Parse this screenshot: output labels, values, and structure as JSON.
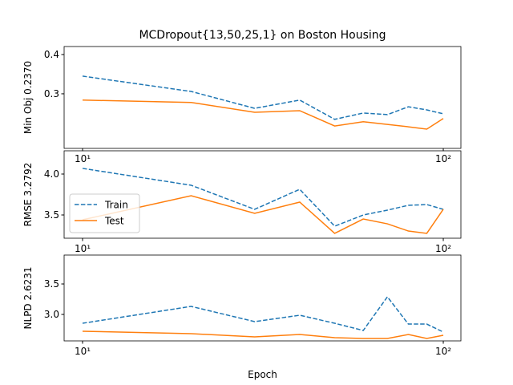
{
  "chart_data": [
    {
      "type": "line",
      "title": "MCDropout{13,50,25,1} on Boston Housing",
      "ylabel": "Min Obj 0.2370",
      "x": [
        10,
        20,
        30,
        40,
        50,
        60,
        70,
        80,
        90,
        100
      ],
      "xscale": "log",
      "xlim": [
        8.89,
        111.9
      ],
      "xticks": [
        {
          "value": 10,
          "label": "10¹"
        },
        {
          "value": 100,
          "label": "10²"
        }
      ],
      "ylim": [
        0.161,
        0.4204
      ],
      "yticks": [
        0.3,
        0.4
      ],
      "series": [
        {
          "color": "#1f77b4",
          "linestyle": "dashed",
          "values": [
            0.345,
            0.306,
            0.263,
            0.284,
            0.235,
            0.251,
            0.247,
            0.267,
            0.259,
            0.249
          ]
        },
        {
          "color": "#ff7f0e",
          "linestyle": "solid",
          "values": [
            0.284,
            0.278,
            0.253,
            0.257,
            0.218,
            0.229,
            0.222,
            0.216,
            0.21,
            0.237
          ]
        }
      ]
    },
    {
      "type": "line",
      "ylabel": "RMSE 3.2792",
      "x": [
        10,
        20,
        30,
        40,
        50,
        60,
        70,
        80,
        90,
        100
      ],
      "xscale": "log",
      "xlim": [
        8.89,
        111.9
      ],
      "xticks": [
        {
          "value": 10,
          "label": "10¹"
        },
        {
          "value": 100,
          "label": "10²"
        }
      ],
      "ylim": [
        3.216,
        4.284
      ],
      "yticks": [
        {
          "value": 3.5,
          "label": "3.5"
        },
        {
          "value": 4,
          "label": "4.0"
        }
      ],
      "legend": "lower left",
      "series": [
        {
          "name": "Train",
          "color": "#1f77b4",
          "linestyle": "dashed",
          "values": [
            4.069,
            3.863,
            3.569,
            3.814,
            3.363,
            3.5,
            3.559,
            3.618,
            3.627,
            3.569
          ]
        },
        {
          "name": "Test",
          "color": "#ff7f0e",
          "linestyle": "solid",
          "values": [
            3.441,
            3.735,
            3.52,
            3.657,
            3.275,
            3.451,
            3.392,
            3.304,
            3.275,
            3.569
          ]
        }
      ]
    },
    {
      "type": "line",
      "ylabel": "NLPD 2.6231",
      "xlabel": "Epoch",
      "x": [
        10,
        20,
        30,
        40,
        50,
        60,
        70,
        80,
        90,
        100
      ],
      "xscale": "log",
      "xlim": [
        8.89,
        111.9
      ],
      "xticks": [
        {
          "value": 10,
          "label": "10¹"
        },
        {
          "value": 100,
          "label": "10²"
        }
      ],
      "ylim": [
        2.566,
        3.974
      ],
      "yticks": [
        {
          "value": 3,
          "label": "3.0"
        },
        3.5
      ],
      "series": [
        {
          "color": "#1f77b4",
          "linestyle": "dashed",
          "values": [
            2.855,
            3.132,
            2.882,
            2.987,
            2.855,
            2.737,
            3.289,
            2.842,
            2.842,
            2.711
          ]
        },
        {
          "color": "#ff7f0e",
          "linestyle": "solid",
          "values": [
            2.724,
            2.684,
            2.632,
            2.671,
            2.618,
            2.605,
            2.605,
            2.671,
            2.605,
            2.658
          ]
        }
      ]
    }
  ]
}
